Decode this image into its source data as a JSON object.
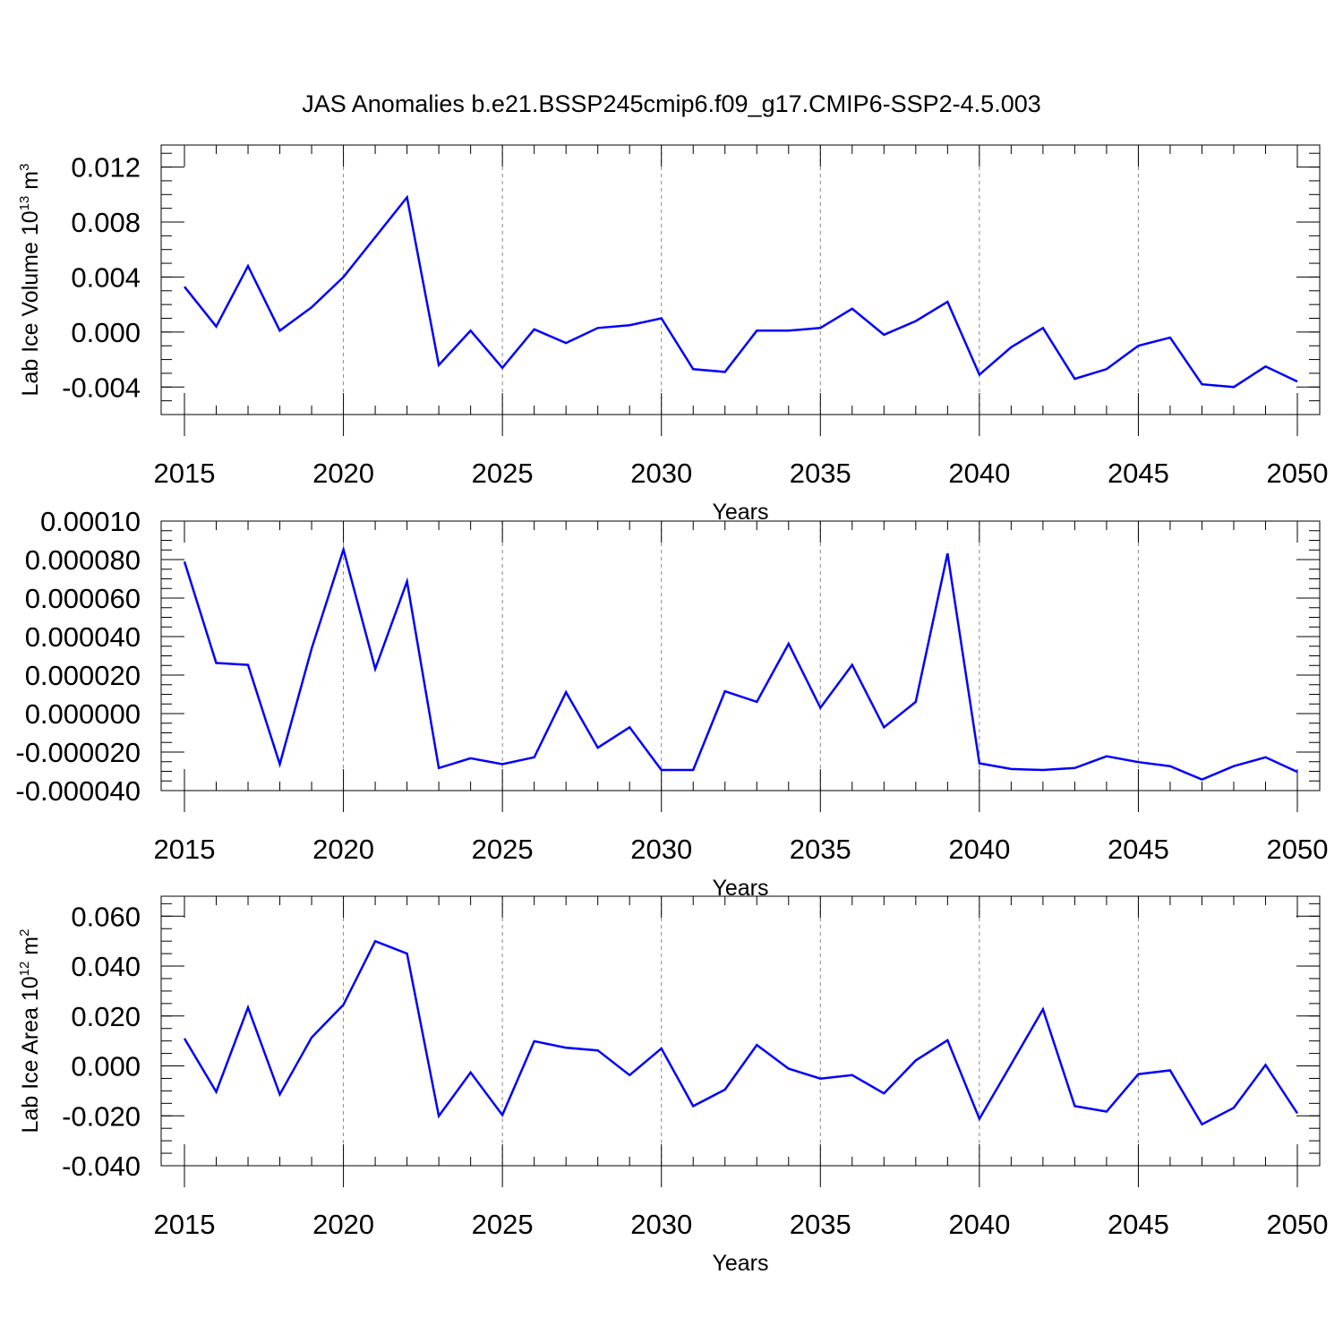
{
  "title": "JAS Anomalies b.e21.BSSP245cmip6.f09_g17.CMIP6-SSP2-4.5.003",
  "chart_data": [
    {
      "type": "line",
      "title": "JAS Anomalies b.e21.BSSP245cmip6.f09_g17.CMIP6-SSP2-4.5.003",
      "xlabel": "Years",
      "ylabel": {
        "main": "Lab Ice Volume 10",
        "sup": "13",
        "unit": " m",
        "unit_sup": "3"
      },
      "xlim": [
        2015,
        2050
      ],
      "ylim": [
        -0.006,
        0.0136
      ],
      "grid": "vertical dashed every 5 years",
      "line_color": "#0000ff",
      "yticks": [
        {
          "value": -0.004,
          "label": "-0.004"
        },
        {
          "value": 0.0,
          "label": "0.000"
        },
        {
          "value": 0.004,
          "label": "0.004"
        },
        {
          "value": 0.008,
          "label": "0.008"
        },
        {
          "value": 0.012,
          "label": "0.012"
        }
      ],
      "yminor_step": 0.001,
      "x": [
        2015,
        2016,
        2017,
        2018,
        2019,
        2020,
        2021,
        2022,
        2023,
        2024,
        2025,
        2026,
        2027,
        2028,
        2029,
        2030,
        2031,
        2032,
        2033,
        2034,
        2035,
        2036,
        2037,
        2038,
        2039,
        2040,
        2041,
        2042,
        2043,
        2044,
        2045,
        2046,
        2047,
        2048,
        2049,
        2050
      ],
      "values": [
        0.0033,
        0.0004,
        0.0048,
        0.0001,
        0.0018,
        0.004,
        0.0069,
        0.0098,
        -0.0024,
        0.0001,
        -0.0026,
        0.0002,
        -0.0008,
        0.0003,
        0.0005,
        0.001,
        -0.0027,
        -0.0029,
        0.0001,
        0.0001,
        0.0003,
        0.0017,
        -0.0002,
        0.0008,
        0.0022,
        -0.0031,
        -0.0011,
        0.0003,
        -0.0034,
        -0.0027,
        -0.001,
        -0.0004,
        -0.0038,
        -0.004,
        -0.0025,
        -0.0036
      ]
    },
    {
      "type": "line",
      "xlabel": "Years",
      "ylabel": null,
      "xlim": [
        2015,
        2050
      ],
      "ylim": [
        -4e-05,
        0.0001
      ],
      "grid": "vertical dashed every 5 years",
      "line_color": "#0000ff",
      "yticks": [
        {
          "value": -4e-05,
          "label": "-0.000040"
        },
        {
          "value": -2e-05,
          "label": "-0.000020"
        },
        {
          "value": 0.0,
          "label": "0.000000"
        },
        {
          "value": 2e-05,
          "label": "0.000020"
        },
        {
          "value": 4e-05,
          "label": "0.000040"
        },
        {
          "value": 6e-05,
          "label": "0.000060"
        },
        {
          "value": 8e-05,
          "label": "0.000080"
        },
        {
          "value": 0.0001,
          "label": "0.00010"
        }
      ],
      "yminor_step": 5e-06,
      "x": [
        2015,
        2016,
        2017,
        2018,
        2019,
        2020,
        2021,
        2022,
        2023,
        2024,
        2025,
        2026,
        2027,
        2028,
        2029,
        2030,
        2031,
        2032,
        2033,
        2034,
        2035,
        2036,
        2037,
        2038,
        2039,
        2040,
        2041,
        2042,
        2043,
        2044,
        2045,
        2046,
        2047,
        2048,
        2049,
        2050
      ],
      "values": [
        7.9e-05,
        2.63e-05,
        2.53e-05,
        -2.63e-05,
        3.38e-05,
        8.52e-05,
        2.32e-05,
        6.86e-05,
        -2.83e-05,
        -2.32e-05,
        -2.63e-05,
        -2.27e-05,
        1.11e-05,
        -1.77e-05,
        -7.1e-06,
        -2.93e-05,
        -2.93e-05,
        1.16e-05,
        6.1e-06,
        3.63e-05,
        3e-06,
        2.53e-05,
        -7.1e-06,
        6.1e-06,
        8.32e-05,
        -2.58e-05,
        -2.88e-05,
        -2.93e-05,
        -2.83e-05,
        -2.22e-05,
        -2.52e-05,
        -2.73e-05,
        -3.43e-05,
        -2.73e-05,
        -2.27e-05,
        -3.03e-05
      ]
    },
    {
      "type": "line",
      "xlabel": "Years",
      "ylabel": {
        "main": "Lab Ice Area 10",
        "sup": "12",
        "unit": " m",
        "unit_sup": "2"
      },
      "xlim": [
        2015,
        2050
      ],
      "ylim": [
        -0.04,
        0.068
      ],
      "grid": "vertical dashed every 5 years",
      "line_color": "#0000ff",
      "yticks": [
        {
          "value": -0.04,
          "label": "-0.040"
        },
        {
          "value": -0.02,
          "label": "-0.020"
        },
        {
          "value": 0.0,
          "label": "0.000"
        },
        {
          "value": 0.02,
          "label": "0.020"
        },
        {
          "value": 0.04,
          "label": "0.040"
        },
        {
          "value": 0.06,
          "label": "0.060"
        }
      ],
      "yminor_step": 0.005,
      "x": [
        2015,
        2016,
        2017,
        2018,
        2019,
        2020,
        2021,
        2022,
        2023,
        2024,
        2025,
        2026,
        2027,
        2028,
        2029,
        2030,
        2031,
        2032,
        2033,
        2034,
        2035,
        2036,
        2037,
        2038,
        2039,
        2040,
        2041,
        2042,
        2043,
        2044,
        2045,
        2046,
        2047,
        2048,
        2049,
        2050
      ],
      "values": [
        0.011,
        -0.0104,
        0.0234,
        -0.0114,
        0.0114,
        0.0245,
        0.05,
        0.045,
        -0.0201,
        -0.0026,
        -0.0197,
        0.0099,
        0.0073,
        0.0062,
        -0.0037,
        0.007,
        -0.0161,
        -0.0095,
        0.0084,
        -0.0011,
        -0.0051,
        -0.0037,
        -0.011,
        0.0022,
        0.0103,
        -0.0212,
        0.0007,
        0.0227,
        -0.0161,
        -0.0183,
        -0.0033,
        -0.0018,
        -0.0234,
        -0.0168,
        0.0004,
        -0.019
      ]
    }
  ],
  "xticks": [
    {
      "value": 2015,
      "label": "2015"
    },
    {
      "value": 2020,
      "label": "2020"
    },
    {
      "value": 2025,
      "label": "2025"
    },
    {
      "value": 2030,
      "label": "2030"
    },
    {
      "value": 2035,
      "label": "2035"
    },
    {
      "value": 2040,
      "label": "2040"
    },
    {
      "value": 2045,
      "label": "2045"
    },
    {
      "value": 2050,
      "label": "2050"
    }
  ]
}
